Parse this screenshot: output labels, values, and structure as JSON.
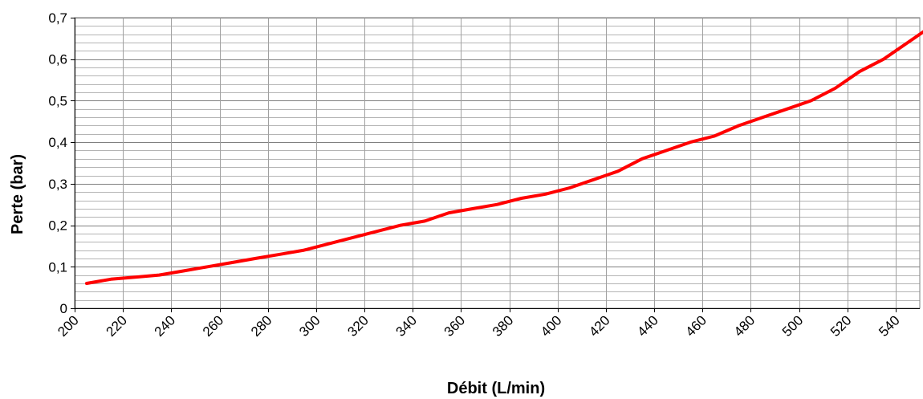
{
  "chart_data": {
    "type": "line",
    "xlabel": "Débit (L/min)",
    "ylabel": "Perte (bar)",
    "xlim": [
      200,
      550
    ],
    "ylim": [
      0,
      0.7
    ],
    "grid": true,
    "legend": "none",
    "x_ticks": [
      {
        "value": 200,
        "label": "200"
      },
      {
        "value": 220,
        "label": "220"
      },
      {
        "value": 240,
        "label": "240"
      },
      {
        "value": 260,
        "label": "260"
      },
      {
        "value": 280,
        "label": "280"
      },
      {
        "value": 300,
        "label": "300"
      },
      {
        "value": 320,
        "label": "320"
      },
      {
        "value": 340,
        "label": "340"
      },
      {
        "value": 360,
        "label": "360"
      },
      {
        "value": 380,
        "label": "380"
      },
      {
        "value": 400,
        "label": "400"
      },
      {
        "value": 420,
        "label": "420"
      },
      {
        "value": 440,
        "label": "440"
      },
      {
        "value": 460,
        "label": "460"
      },
      {
        "value": 480,
        "label": "480"
      },
      {
        "value": 500,
        "label": "500"
      },
      {
        "value": 520,
        "label": "520"
      },
      {
        "value": 540,
        "label": "540"
      }
    ],
    "y_ticks": [
      {
        "value": 0,
        "label": "0"
      },
      {
        "value": 0.1,
        "label": "0,1"
      },
      {
        "value": 0.2,
        "label": "0,2"
      },
      {
        "value": 0.3,
        "label": "0,3"
      },
      {
        "value": 0.4,
        "label": "0,4"
      },
      {
        "value": 0.5,
        "label": "0,5"
      },
      {
        "value": 0.6,
        "label": "0,6"
      },
      {
        "value": 0.7,
        "label": "0,7"
      }
    ],
    "minor_y_step": 0.02,
    "series": [
      {
        "color": "#ff0000",
        "points": [
          [
            205,
            0.06
          ],
          [
            215,
            0.07
          ],
          [
            225,
            0.075
          ],
          [
            235,
            0.08
          ],
          [
            245,
            0.09
          ],
          [
            255,
            0.1
          ],
          [
            265,
            0.11
          ],
          [
            275,
            0.12
          ],
          [
            285,
            0.13
          ],
          [
            295,
            0.14
          ],
          [
            305,
            0.155
          ],
          [
            315,
            0.17
          ],
          [
            325,
            0.185
          ],
          [
            335,
            0.2
          ],
          [
            345,
            0.21
          ],
          [
            355,
            0.23
          ],
          [
            365,
            0.24
          ],
          [
            375,
            0.25
          ],
          [
            385,
            0.265
          ],
          [
            395,
            0.275
          ],
          [
            405,
            0.29
          ],
          [
            415,
            0.31
          ],
          [
            425,
            0.33
          ],
          [
            435,
            0.36
          ],
          [
            445,
            0.38
          ],
          [
            455,
            0.4
          ],
          [
            465,
            0.415
          ],
          [
            475,
            0.44
          ],
          [
            485,
            0.46
          ],
          [
            495,
            0.48
          ],
          [
            505,
            0.5
          ],
          [
            515,
            0.53
          ],
          [
            525,
            0.57
          ],
          [
            535,
            0.6
          ],
          [
            545,
            0.64
          ],
          [
            555,
            0.68
          ]
        ]
      }
    ]
  }
}
